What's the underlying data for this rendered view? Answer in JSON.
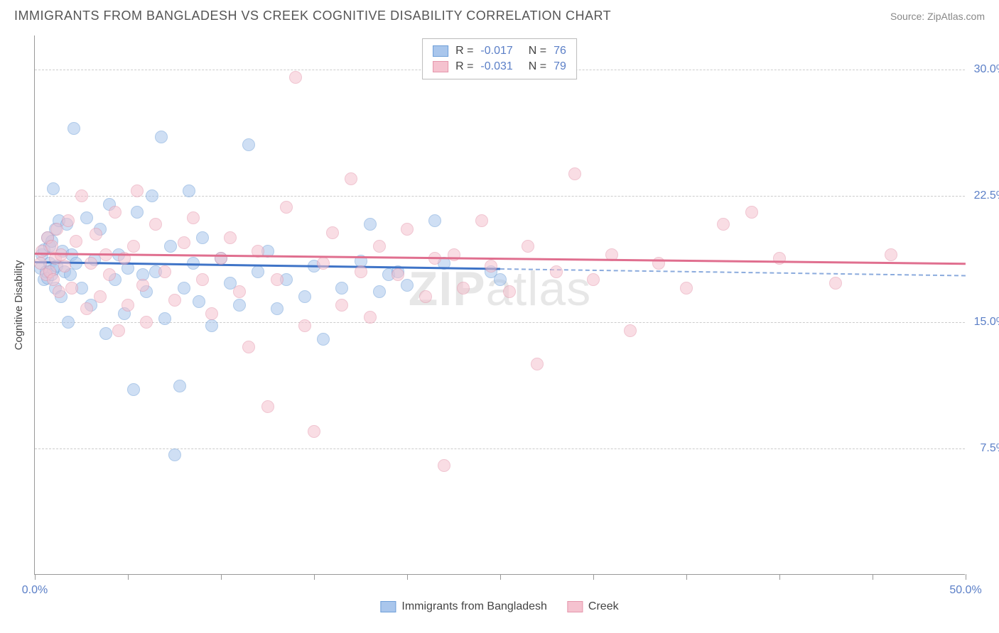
{
  "header": {
    "title": "IMMIGRANTS FROM BANGLADESH VS CREEK COGNITIVE DISABILITY CORRELATION CHART",
    "source_label": "Source: ",
    "source_name": "ZipAtlas.com"
  },
  "chart": {
    "type": "scatter",
    "ylabel": "Cognitive Disability",
    "background_color": "#ffffff",
    "grid_color": "#cccccc",
    "axis_color": "#999999",
    "label_color": "#5b7fc7",
    "label_fontsize": 16,
    "xlim": [
      0,
      50
    ],
    "ylim": [
      0,
      32
    ],
    "yticks": [
      {
        "value": 7.5,
        "label": "7.5%"
      },
      {
        "value": 15.0,
        "label": "15.0%"
      },
      {
        "value": 22.5,
        "label": "22.5%"
      },
      {
        "value": 30.0,
        "label": "30.0%"
      }
    ],
    "xticks": [
      {
        "value": 0,
        "label": "0.0%"
      },
      {
        "value": 5,
        "label": ""
      },
      {
        "value": 10,
        "label": ""
      },
      {
        "value": 15,
        "label": ""
      },
      {
        "value": 20,
        "label": ""
      },
      {
        "value": 25,
        "label": ""
      },
      {
        "value": 30,
        "label": ""
      },
      {
        "value": 35,
        "label": ""
      },
      {
        "value": 40,
        "label": ""
      },
      {
        "value": 45,
        "label": ""
      },
      {
        "value": 50,
        "label": "50.0%"
      }
    ],
    "series": [
      {
        "name": "Immigrants from Bangladesh",
        "label": "Immigrants from Bangladesh",
        "fill_color": "#a9c6ec",
        "stroke_color": "#6f9fd8",
        "R": "-0.017",
        "N": "76",
        "trend": {
          "y_start": 18.6,
          "y_end": 17.8,
          "x_solid_end": 25,
          "color": "#3f74c7"
        },
        "points": [
          [
            0.3,
            18.2
          ],
          [
            0.4,
            19.0
          ],
          [
            0.5,
            17.5
          ],
          [
            0.5,
            19.3
          ],
          [
            0.6,
            18.0
          ],
          [
            0.7,
            17.6
          ],
          [
            0.7,
            20.0
          ],
          [
            0.8,
            18.5
          ],
          [
            0.8,
            19.5
          ],
          [
            0.9,
            17.8
          ],
          [
            0.9,
            19.8
          ],
          [
            1.0,
            18.1
          ],
          [
            1.0,
            22.9
          ],
          [
            1.1,
            17.0
          ],
          [
            1.1,
            20.5
          ],
          [
            1.2,
            18.3
          ],
          [
            1.3,
            21.0
          ],
          [
            1.4,
            16.5
          ],
          [
            1.5,
            19.2
          ],
          [
            1.6,
            18.0
          ],
          [
            1.7,
            20.8
          ],
          [
            1.8,
            15.0
          ],
          [
            1.9,
            17.8
          ],
          [
            2.0,
            19.0
          ],
          [
            2.1,
            26.5
          ],
          [
            2.2,
            18.5
          ],
          [
            2.5,
            17.0
          ],
          [
            2.8,
            21.2
          ],
          [
            3.0,
            16.0
          ],
          [
            3.2,
            18.7
          ],
          [
            3.5,
            20.5
          ],
          [
            3.8,
            14.3
          ],
          [
            4.0,
            22.0
          ],
          [
            4.3,
            17.5
          ],
          [
            4.5,
            19.0
          ],
          [
            4.8,
            15.5
          ],
          [
            5.0,
            18.2
          ],
          [
            5.3,
            11.0
          ],
          [
            5.5,
            21.5
          ],
          [
            5.8,
            17.8
          ],
          [
            6.0,
            16.8
          ],
          [
            6.3,
            22.5
          ],
          [
            6.5,
            18.0
          ],
          [
            6.8,
            26.0
          ],
          [
            7.0,
            15.2
          ],
          [
            7.3,
            19.5
          ],
          [
            7.5,
            7.1
          ],
          [
            7.8,
            11.2
          ],
          [
            8.0,
            17.0
          ],
          [
            8.3,
            22.8
          ],
          [
            8.5,
            18.5
          ],
          [
            8.8,
            16.2
          ],
          [
            9.0,
            20.0
          ],
          [
            9.5,
            14.8
          ],
          [
            10.0,
            18.8
          ],
          [
            10.5,
            17.3
          ],
          [
            11.0,
            16.0
          ],
          [
            11.5,
            25.5
          ],
          [
            12.0,
            18.0
          ],
          [
            12.5,
            19.2
          ],
          [
            13.0,
            15.8
          ],
          [
            13.5,
            17.5
          ],
          [
            14.5,
            16.5
          ],
          [
            15.0,
            18.3
          ],
          [
            15.5,
            14.0
          ],
          [
            16.5,
            17.0
          ],
          [
            17.5,
            18.6
          ],
          [
            18.0,
            20.8
          ],
          [
            18.5,
            16.8
          ],
          [
            19.0,
            17.8
          ],
          [
            19.5,
            18.0
          ],
          [
            20.0,
            17.2
          ],
          [
            21.5,
            21.0
          ],
          [
            22.0,
            18.5
          ],
          [
            24.5,
            18.0
          ],
          [
            25.0,
            17.5
          ]
        ]
      },
      {
        "name": "Creek",
        "label": "Creek",
        "fill_color": "#f5c2cf",
        "stroke_color": "#e597ac",
        "R": "-0.031",
        "N": "79",
        "trend": {
          "y_start": 19.1,
          "y_end": 18.5,
          "x_solid_end": 50,
          "color": "#e06f8f"
        },
        "points": [
          [
            0.3,
            18.5
          ],
          [
            0.4,
            19.2
          ],
          [
            0.6,
            17.8
          ],
          [
            0.7,
            20.0
          ],
          [
            0.8,
            18.0
          ],
          [
            0.9,
            19.5
          ],
          [
            1.0,
            17.5
          ],
          [
            1.1,
            18.8
          ],
          [
            1.2,
            20.5
          ],
          [
            1.3,
            16.8
          ],
          [
            1.4,
            19.0
          ],
          [
            1.6,
            18.3
          ],
          [
            1.8,
            21.0
          ],
          [
            2.0,
            17.0
          ],
          [
            2.2,
            19.8
          ],
          [
            2.5,
            22.5
          ],
          [
            2.8,
            15.8
          ],
          [
            3.0,
            18.5
          ],
          [
            3.3,
            20.2
          ],
          [
            3.5,
            16.5
          ],
          [
            3.8,
            19.0
          ],
          [
            4.0,
            17.8
          ],
          [
            4.3,
            21.5
          ],
          [
            4.5,
            14.5
          ],
          [
            4.8,
            18.8
          ],
          [
            5.0,
            16.0
          ],
          [
            5.3,
            19.5
          ],
          [
            5.5,
            22.8
          ],
          [
            5.8,
            17.2
          ],
          [
            6.0,
            15.0
          ],
          [
            6.5,
            20.8
          ],
          [
            7.0,
            18.0
          ],
          [
            7.5,
            16.3
          ],
          [
            8.0,
            19.7
          ],
          [
            8.5,
            21.2
          ],
          [
            9.0,
            17.5
          ],
          [
            9.5,
            15.5
          ],
          [
            10.0,
            18.8
          ],
          [
            10.5,
            20.0
          ],
          [
            11.0,
            16.8
          ],
          [
            11.5,
            13.5
          ],
          [
            12.0,
            19.2
          ],
          [
            12.5,
            10.0
          ],
          [
            13.0,
            17.5
          ],
          [
            13.5,
            21.8
          ],
          [
            14.0,
            29.5
          ],
          [
            14.5,
            14.8
          ],
          [
            15.0,
            8.5
          ],
          [
            15.5,
            18.5
          ],
          [
            16.0,
            20.3
          ],
          [
            16.5,
            16.0
          ],
          [
            17.0,
            23.5
          ],
          [
            17.5,
            18.0
          ],
          [
            18.0,
            15.3
          ],
          [
            18.5,
            19.5
          ],
          [
            19.5,
            17.8
          ],
          [
            20.0,
            20.5
          ],
          [
            21.0,
            16.5
          ],
          [
            21.5,
            18.8
          ],
          [
            22.0,
            6.5
          ],
          [
            22.5,
            19.0
          ],
          [
            23.0,
            17.0
          ],
          [
            24.0,
            21.0
          ],
          [
            24.5,
            18.3
          ],
          [
            25.5,
            16.8
          ],
          [
            26.5,
            19.5
          ],
          [
            27.0,
            12.5
          ],
          [
            28.0,
            18.0
          ],
          [
            29.0,
            23.8
          ],
          [
            30.0,
            17.5
          ],
          [
            31.0,
            19.0
          ],
          [
            32.0,
            14.5
          ],
          [
            33.5,
            18.5
          ],
          [
            35.0,
            17.0
          ],
          [
            37.0,
            20.8
          ],
          [
            38.5,
            21.5
          ],
          [
            40.0,
            18.8
          ],
          [
            43.0,
            17.3
          ],
          [
            46.0,
            19.0
          ]
        ]
      }
    ],
    "watermark": {
      "strong": "ZIP",
      "rest": "atlas"
    }
  }
}
